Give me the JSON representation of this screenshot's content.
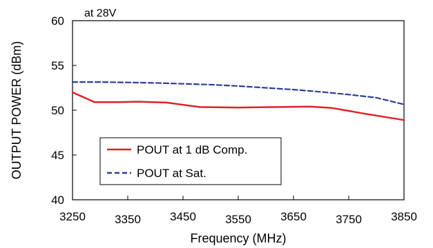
{
  "chart_data": {
    "type": "line",
    "title": "",
    "annotation": "at 28V",
    "xlabel": "Frequency  (MHz)",
    "ylabel": "OUTPUT POWER (dBm)",
    "xlim": [
      3250,
      3850
    ],
    "ylim": [
      40,
      60
    ],
    "x_ticks": [
      "3250",
      "3350",
      "3450",
      "3550",
      "3650",
      "3750",
      "3850"
    ],
    "y_ticks": [
      "40",
      "45",
      "50",
      "55",
      "60"
    ],
    "grid": false,
    "legend_position": "bottom-left",
    "series": [
      {
        "name": "POUT at 1 dB Comp.",
        "color": "#e02027",
        "style": "solid",
        "x": [
          3250,
          3290,
          3330,
          3370,
          3420,
          3480,
          3550,
          3620,
          3680,
          3720,
          3780,
          3850
        ],
        "y": [
          52.0,
          50.9,
          50.9,
          50.95,
          50.85,
          50.35,
          50.3,
          50.35,
          50.4,
          50.25,
          49.6,
          48.9
        ]
      },
      {
        "name": "POUT at Sat.",
        "color": "#2a3f94",
        "style": "dashed",
        "x": [
          3250,
          3300,
          3350,
          3400,
          3450,
          3500,
          3550,
          3600,
          3650,
          3700,
          3750,
          3800,
          3850
        ],
        "y": [
          53.15,
          53.15,
          53.1,
          53.05,
          52.95,
          52.85,
          52.7,
          52.5,
          52.3,
          52.05,
          51.75,
          51.4,
          50.65
        ]
      }
    ]
  }
}
